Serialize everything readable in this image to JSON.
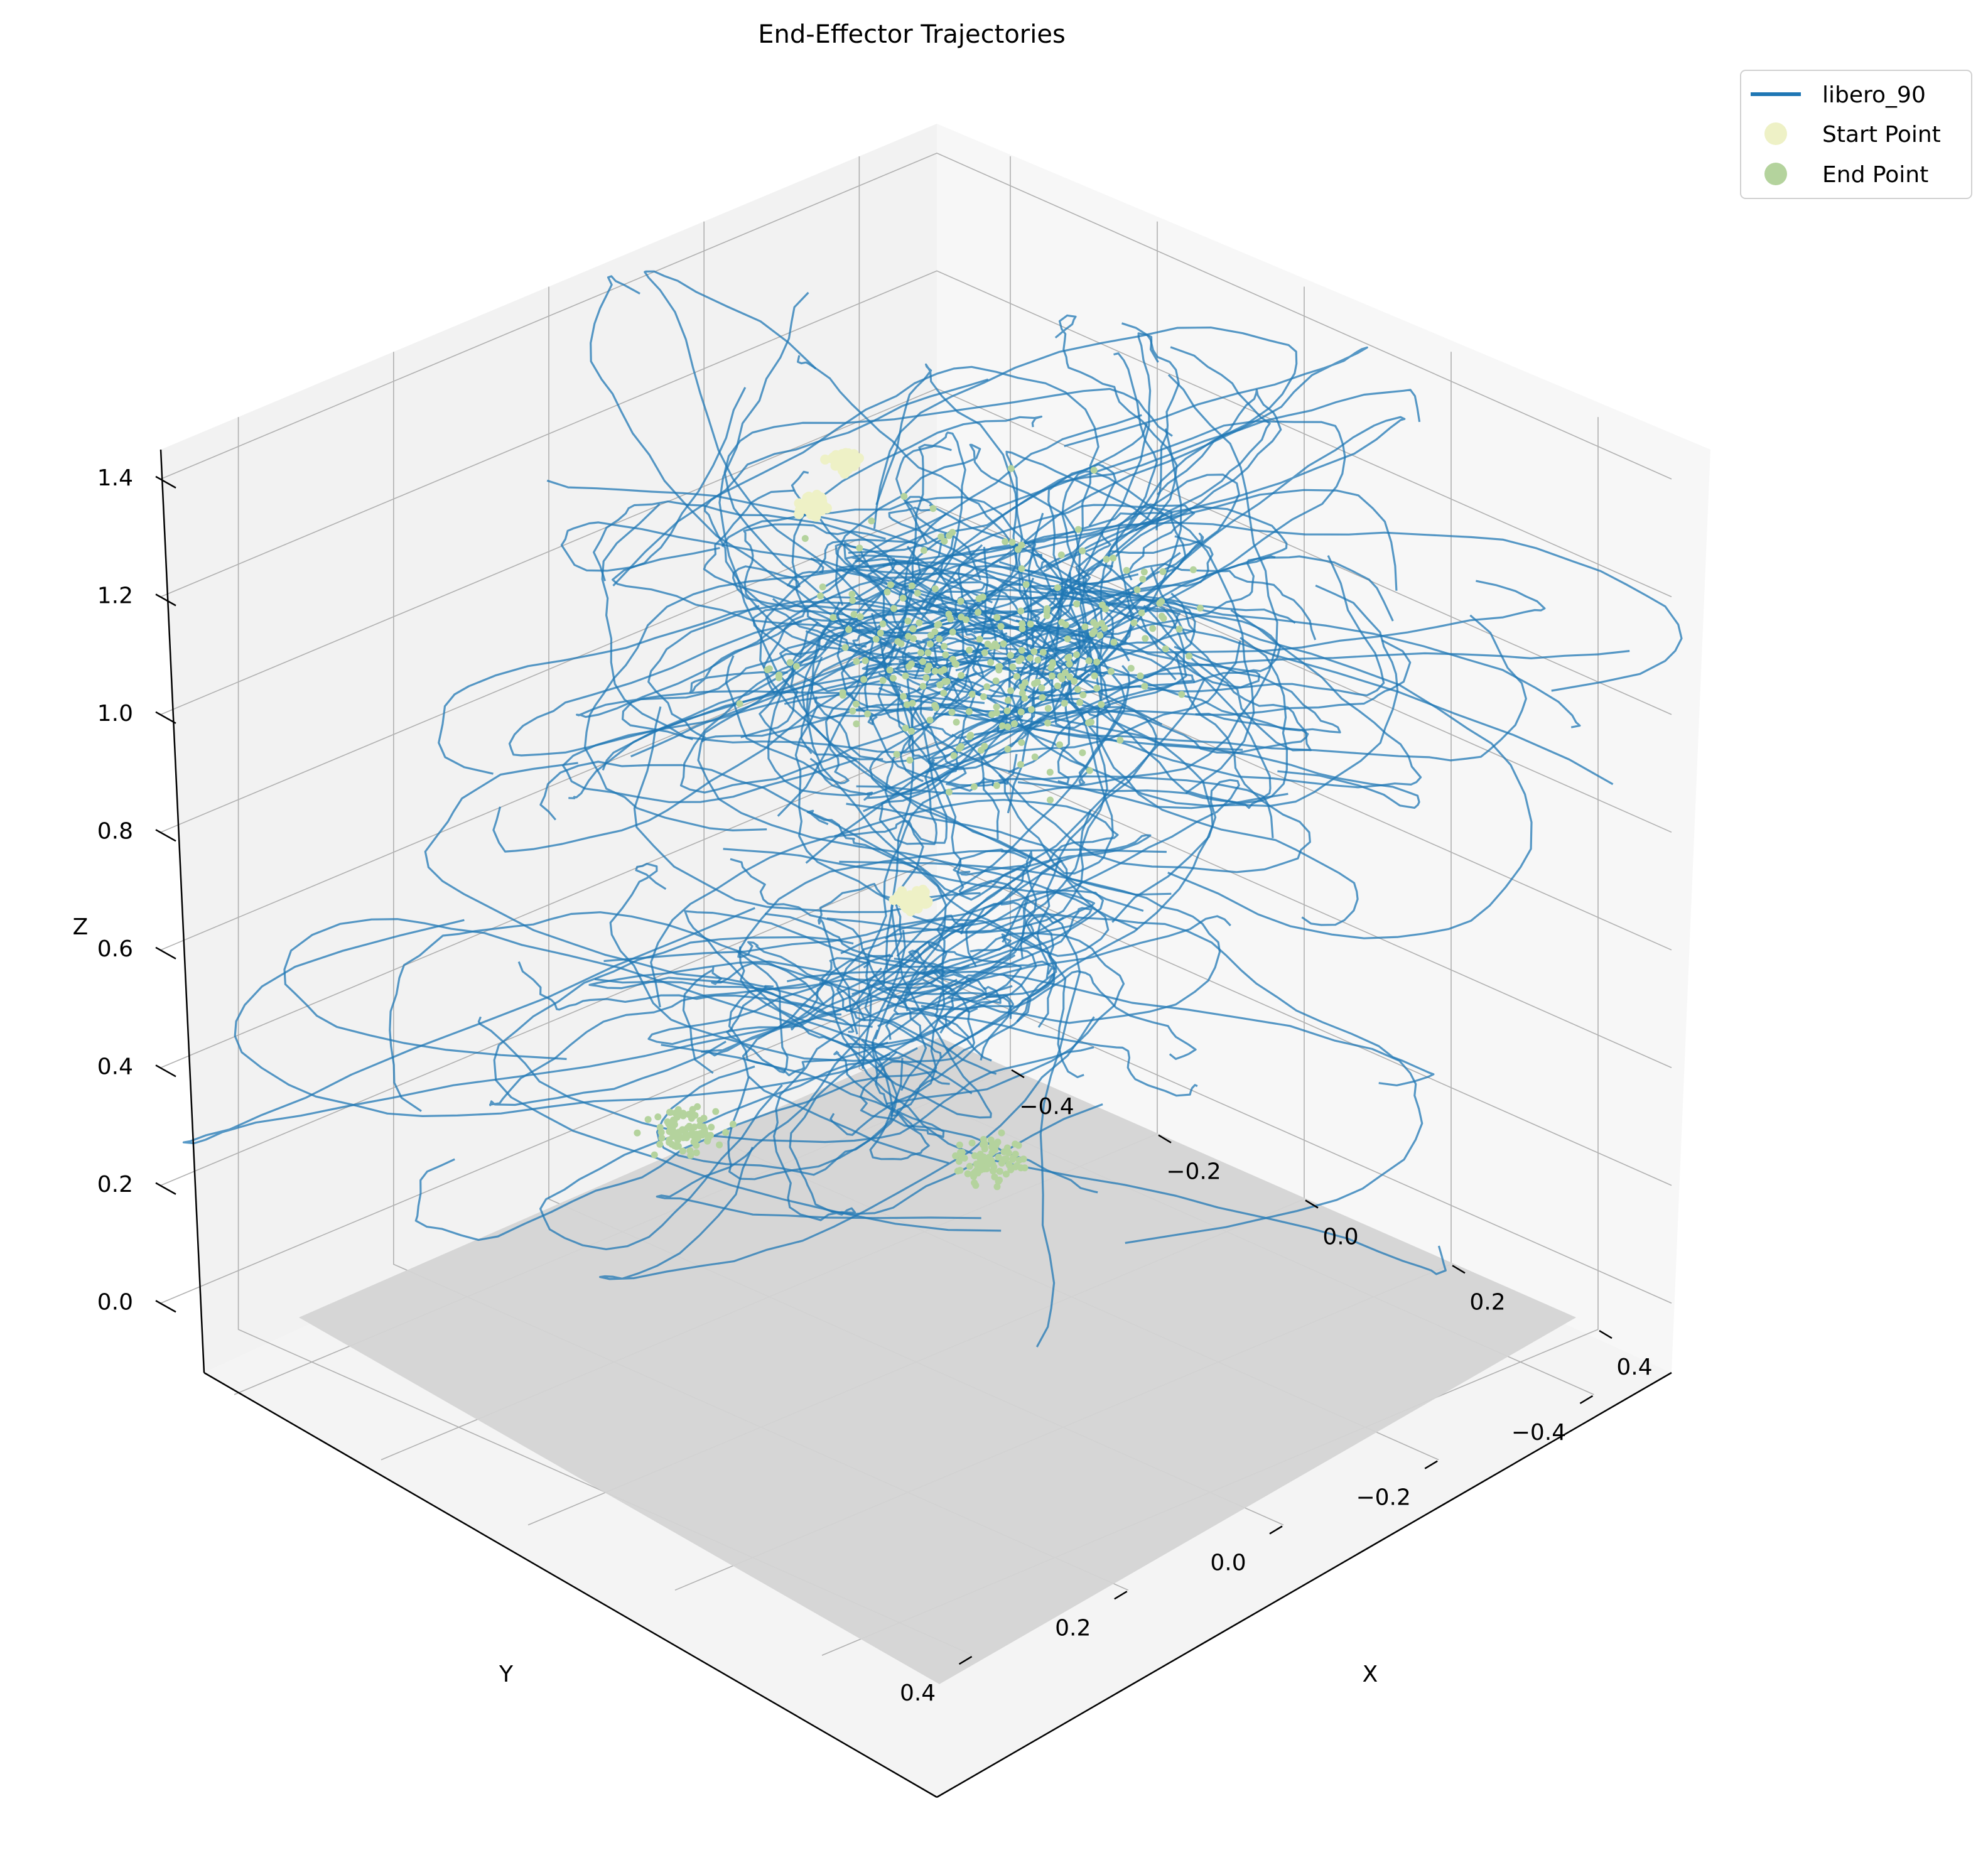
{
  "chart_data": {
    "type": "line",
    "projection": "3d",
    "title": "End-Effector Trajectories",
    "xlabel": "X",
    "ylabel": "Y",
    "zlabel": "Z",
    "xlim": [
      -0.5,
      0.5
    ],
    "ylim": [
      -0.5,
      0.5
    ],
    "zlim": [
      -0.1,
      1.45
    ],
    "x_ticks": [
      -0.4,
      -0.2,
      0.0,
      0.2,
      0.4
    ],
    "x_tick_labels": [
      "−0.4",
      "−0.2",
      "0.0",
      "0.2",
      "0.4"
    ],
    "y_ticks": [
      -0.4,
      -0.2,
      0.0,
      0.2,
      0.4
    ],
    "y_tick_labels": [
      "−0.4",
      "−0.2",
      "0.0",
      "0.2",
      "0.4"
    ],
    "z_ticks": [
      0.0,
      0.2,
      0.4,
      0.6,
      0.8,
      1.0,
      1.2,
      1.4
    ],
    "z_tick_labels": [
      "0.0",
      "0.2",
      "0.4",
      "0.6",
      "0.8",
      "1.0",
      "1.2",
      "1.4"
    ],
    "grid": true,
    "legend_position": "top-right",
    "legend": [
      {
        "label": "libero_90",
        "marker": "line",
        "color": "#1f77b4"
      },
      {
        "label": "Start Point",
        "marker": "circle",
        "color": "#eef1c6"
      },
      {
        "label": "End Point",
        "marker": "circle",
        "color": "#b4d39d"
      }
    ],
    "series": [
      {
        "name": "libero_90",
        "color": "#1f77b4",
        "trajectory_clusters": [
          {
            "center": [
              0.05,
              -0.05,
              1.15
            ],
            "spread": [
              0.25,
              0.25,
              0.25
            ],
            "count": 130
          },
          {
            "center": [
              0.05,
              0.05,
              0.58
            ],
            "spread": [
              0.22,
              0.22,
              0.12
            ],
            "count": 70
          }
        ],
        "start_clusters": [
          {
            "center": [
              -0.15,
              -0.05,
              1.32
            ],
            "spread": 0.02
          },
          {
            "center": [
              -0.12,
              0.02,
              1.3
            ],
            "spread": 0.02
          },
          {
            "center": [
              0.05,
              0.05,
              0.74
            ],
            "spread": 0.02
          }
        ],
        "end_clusters": [
          {
            "center": [
              0.05,
              -0.05,
              1.1
            ],
            "spread": 0.25
          },
          {
            "center": [
              -0.1,
              0.2,
              0.35
            ],
            "spread": 0.05
          },
          {
            "center": [
              0.15,
              0.05,
              0.35
            ],
            "spread": 0.05
          }
        ]
      }
    ],
    "colors": {
      "line": "#1f77b4",
      "start_point": "#eef1c6",
      "end_point": "#b4d39d",
      "pane_left": "#f2f2f2",
      "pane_right": "#f7f7f7",
      "pane_floor": "#f4f4f4",
      "ground_plane": "#d4d4d4",
      "grid": "#b0b0b0"
    }
  }
}
